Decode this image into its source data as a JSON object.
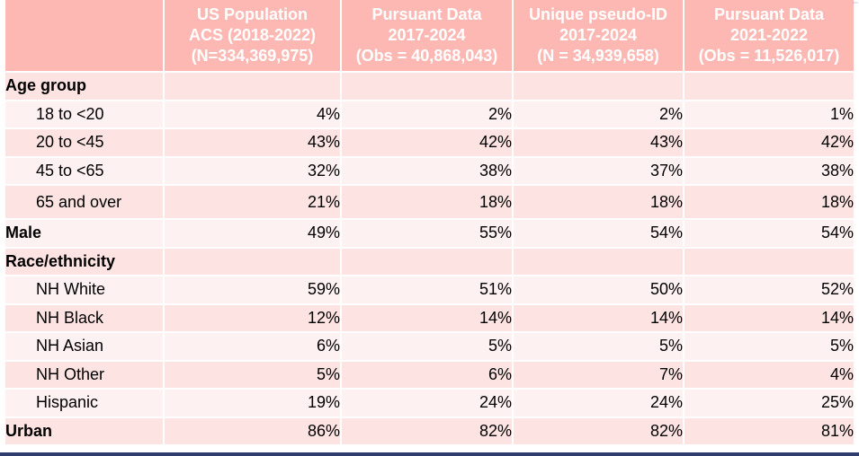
{
  "table": {
    "headers": [
      {
        "lines": []
      },
      {
        "lines": [
          "US Population",
          "ACS (2018-2022)",
          "(N=334,369,975)"
        ]
      },
      {
        "lines": [
          "Pursuant Data",
          "2017-2024",
          "(Obs = 40,868,043)"
        ]
      },
      {
        "lines": [
          "Unique pseudo-ID",
          "2017-2024",
          "(N = 34,939,658)"
        ]
      },
      {
        "lines": [
          "Pursuant Data",
          "2021-2022",
          "(Obs = 11,526,017)"
        ]
      }
    ],
    "rows": [
      {
        "label": "Age group",
        "bold": true,
        "indent": false,
        "values": [
          "",
          "",
          "",
          ""
        ]
      },
      {
        "label": "18 to <20",
        "bold": false,
        "indent": true,
        "values": [
          "4%",
          "2%",
          "2%",
          "1%"
        ]
      },
      {
        "label": "20 to <45",
        "bold": false,
        "indent": true,
        "values": [
          "43%",
          "42%",
          "43%",
          "42%"
        ]
      },
      {
        "label": "45 to <65",
        "bold": false,
        "indent": true,
        "values": [
          "32%",
          "38%",
          "37%",
          "38%"
        ]
      },
      {
        "label": "65 and over",
        "bold": false,
        "indent": true,
        "values": [
          "21%",
          "18%",
          "18%",
          "18%"
        ]
      },
      {
        "label": "Male",
        "bold": true,
        "indent": false,
        "values": [
          "49%",
          "55%",
          "54%",
          "54%"
        ]
      },
      {
        "label": "Race/ethnicity",
        "bold": true,
        "indent": false,
        "values": [
          "",
          "",
          "",
          ""
        ]
      },
      {
        "label": "NH White",
        "bold": false,
        "indent": true,
        "values": [
          "59%",
          "51%",
          "50%",
          "52%"
        ]
      },
      {
        "label": "NH Black",
        "bold": false,
        "indent": true,
        "values": [
          "12%",
          "14%",
          "14%",
          "14%"
        ]
      },
      {
        "label": "NH Asian",
        "bold": false,
        "indent": true,
        "values": [
          "6%",
          "5%",
          "5%",
          "5%"
        ]
      },
      {
        "label": "NH Other",
        "bold": false,
        "indent": true,
        "values": [
          "5%",
          "6%",
          "7%",
          "4%"
        ]
      },
      {
        "label": "Hispanic",
        "bold": false,
        "indent": true,
        "values": [
          "19%",
          "24%",
          "24%",
          "25%"
        ]
      },
      {
        "label": "Urban",
        "bold": true,
        "indent": false,
        "values": [
          "86%",
          "82%",
          "82%",
          "81%"
        ]
      }
    ]
  },
  "colors": {
    "header_fill": "#fdb8b3",
    "row_fill_a": "#fde4e3",
    "row_fill_b": "#fef1f1",
    "bottom_rule": "#2f3d6e"
  }
}
